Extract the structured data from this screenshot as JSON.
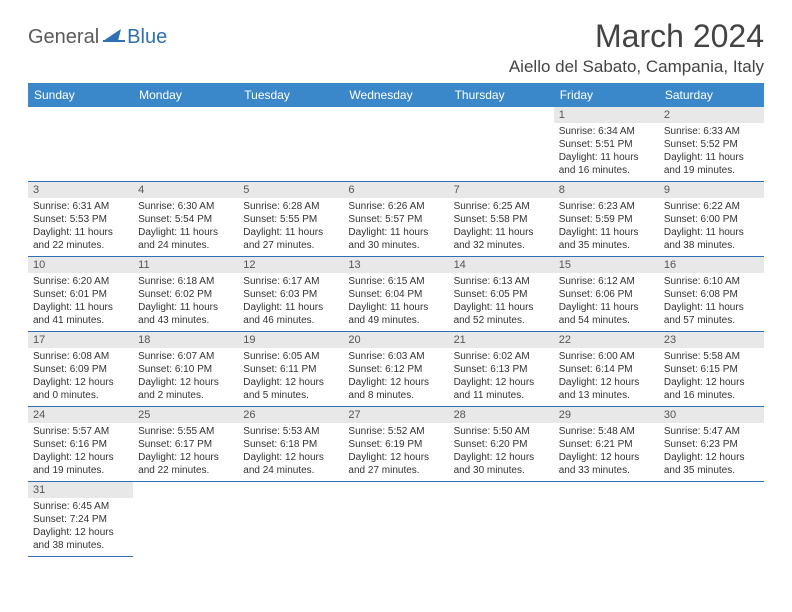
{
  "logo": {
    "general": "General",
    "blue": "Blue"
  },
  "title": "March 2024",
  "location": "Aiello del Sabato, Campania, Italy",
  "colors": {
    "header_bg": "#3a88c9",
    "header_text": "#ffffff",
    "daynum_bg": "#e8e8e8",
    "row_border": "#2f6fb3",
    "text": "#333333",
    "logo_gray": "#5a5a5a",
    "logo_blue": "#2f6fb3"
  },
  "weekdays": [
    "Sunday",
    "Monday",
    "Tuesday",
    "Wednesday",
    "Thursday",
    "Friday",
    "Saturday"
  ],
  "cells": [
    {
      "empty": true
    },
    {
      "empty": true
    },
    {
      "empty": true
    },
    {
      "empty": true
    },
    {
      "empty": true
    },
    {
      "day": "1",
      "sunrise": "Sunrise: 6:34 AM",
      "sunset": "Sunset: 5:51 PM",
      "daylight": "Daylight: 11 hours and 16 minutes."
    },
    {
      "day": "2",
      "sunrise": "Sunrise: 6:33 AM",
      "sunset": "Sunset: 5:52 PM",
      "daylight": "Daylight: 11 hours and 19 minutes."
    },
    {
      "day": "3",
      "sunrise": "Sunrise: 6:31 AM",
      "sunset": "Sunset: 5:53 PM",
      "daylight": "Daylight: 11 hours and 22 minutes."
    },
    {
      "day": "4",
      "sunrise": "Sunrise: 6:30 AM",
      "sunset": "Sunset: 5:54 PM",
      "daylight": "Daylight: 11 hours and 24 minutes."
    },
    {
      "day": "5",
      "sunrise": "Sunrise: 6:28 AM",
      "sunset": "Sunset: 5:55 PM",
      "daylight": "Daylight: 11 hours and 27 minutes."
    },
    {
      "day": "6",
      "sunrise": "Sunrise: 6:26 AM",
      "sunset": "Sunset: 5:57 PM",
      "daylight": "Daylight: 11 hours and 30 minutes."
    },
    {
      "day": "7",
      "sunrise": "Sunrise: 6:25 AM",
      "sunset": "Sunset: 5:58 PM",
      "daylight": "Daylight: 11 hours and 32 minutes."
    },
    {
      "day": "8",
      "sunrise": "Sunrise: 6:23 AM",
      "sunset": "Sunset: 5:59 PM",
      "daylight": "Daylight: 11 hours and 35 minutes."
    },
    {
      "day": "9",
      "sunrise": "Sunrise: 6:22 AM",
      "sunset": "Sunset: 6:00 PM",
      "daylight": "Daylight: 11 hours and 38 minutes."
    },
    {
      "day": "10",
      "sunrise": "Sunrise: 6:20 AM",
      "sunset": "Sunset: 6:01 PM",
      "daylight": "Daylight: 11 hours and 41 minutes."
    },
    {
      "day": "11",
      "sunrise": "Sunrise: 6:18 AM",
      "sunset": "Sunset: 6:02 PM",
      "daylight": "Daylight: 11 hours and 43 minutes."
    },
    {
      "day": "12",
      "sunrise": "Sunrise: 6:17 AM",
      "sunset": "Sunset: 6:03 PM",
      "daylight": "Daylight: 11 hours and 46 minutes."
    },
    {
      "day": "13",
      "sunrise": "Sunrise: 6:15 AM",
      "sunset": "Sunset: 6:04 PM",
      "daylight": "Daylight: 11 hours and 49 minutes."
    },
    {
      "day": "14",
      "sunrise": "Sunrise: 6:13 AM",
      "sunset": "Sunset: 6:05 PM",
      "daylight": "Daylight: 11 hours and 52 minutes."
    },
    {
      "day": "15",
      "sunrise": "Sunrise: 6:12 AM",
      "sunset": "Sunset: 6:06 PM",
      "daylight": "Daylight: 11 hours and 54 minutes."
    },
    {
      "day": "16",
      "sunrise": "Sunrise: 6:10 AM",
      "sunset": "Sunset: 6:08 PM",
      "daylight": "Daylight: 11 hours and 57 minutes."
    },
    {
      "day": "17",
      "sunrise": "Sunrise: 6:08 AM",
      "sunset": "Sunset: 6:09 PM",
      "daylight": "Daylight: 12 hours and 0 minutes."
    },
    {
      "day": "18",
      "sunrise": "Sunrise: 6:07 AM",
      "sunset": "Sunset: 6:10 PM",
      "daylight": "Daylight: 12 hours and 2 minutes."
    },
    {
      "day": "19",
      "sunrise": "Sunrise: 6:05 AM",
      "sunset": "Sunset: 6:11 PM",
      "daylight": "Daylight: 12 hours and 5 minutes."
    },
    {
      "day": "20",
      "sunrise": "Sunrise: 6:03 AM",
      "sunset": "Sunset: 6:12 PM",
      "daylight": "Daylight: 12 hours and 8 minutes."
    },
    {
      "day": "21",
      "sunrise": "Sunrise: 6:02 AM",
      "sunset": "Sunset: 6:13 PM",
      "daylight": "Daylight: 12 hours and 11 minutes."
    },
    {
      "day": "22",
      "sunrise": "Sunrise: 6:00 AM",
      "sunset": "Sunset: 6:14 PM",
      "daylight": "Daylight: 12 hours and 13 minutes."
    },
    {
      "day": "23",
      "sunrise": "Sunrise: 5:58 AM",
      "sunset": "Sunset: 6:15 PM",
      "daylight": "Daylight: 12 hours and 16 minutes."
    },
    {
      "day": "24",
      "sunrise": "Sunrise: 5:57 AM",
      "sunset": "Sunset: 6:16 PM",
      "daylight": "Daylight: 12 hours and 19 minutes."
    },
    {
      "day": "25",
      "sunrise": "Sunrise: 5:55 AM",
      "sunset": "Sunset: 6:17 PM",
      "daylight": "Daylight: 12 hours and 22 minutes."
    },
    {
      "day": "26",
      "sunrise": "Sunrise: 5:53 AM",
      "sunset": "Sunset: 6:18 PM",
      "daylight": "Daylight: 12 hours and 24 minutes."
    },
    {
      "day": "27",
      "sunrise": "Sunrise: 5:52 AM",
      "sunset": "Sunset: 6:19 PM",
      "daylight": "Daylight: 12 hours and 27 minutes."
    },
    {
      "day": "28",
      "sunrise": "Sunrise: 5:50 AM",
      "sunset": "Sunset: 6:20 PM",
      "daylight": "Daylight: 12 hours and 30 minutes."
    },
    {
      "day": "29",
      "sunrise": "Sunrise: 5:48 AM",
      "sunset": "Sunset: 6:21 PM",
      "daylight": "Daylight: 12 hours and 33 minutes."
    },
    {
      "day": "30",
      "sunrise": "Sunrise: 5:47 AM",
      "sunset": "Sunset: 6:23 PM",
      "daylight": "Daylight: 12 hours and 35 minutes."
    },
    {
      "day": "31",
      "sunrise": "Sunrise: 6:45 AM",
      "sunset": "Sunset: 7:24 PM",
      "daylight": "Daylight: 12 hours and 38 minutes."
    },
    {
      "empty": true,
      "noborder": true
    },
    {
      "empty": true,
      "noborder": true
    },
    {
      "empty": true,
      "noborder": true
    },
    {
      "empty": true,
      "noborder": true
    },
    {
      "empty": true,
      "noborder": true
    },
    {
      "empty": true,
      "noborder": true
    }
  ]
}
